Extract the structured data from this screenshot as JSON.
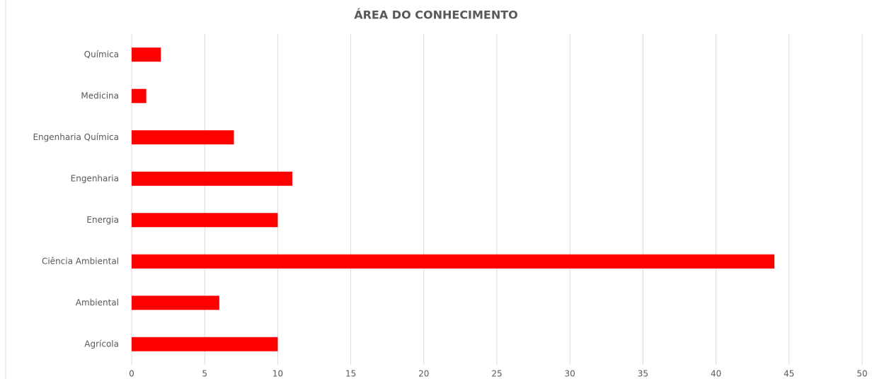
{
  "chart_data": {
    "type": "bar",
    "orientation": "horizontal",
    "title": "ÁREA DO CONHECIMENTO",
    "categories": [
      "Agrícola",
      "Ambiental",
      "Ciência Ambiental",
      "Energia",
      "Engenharia",
      "Engenharia Química",
      "Medicina",
      "Química"
    ],
    "values": [
      10,
      6,
      44,
      10,
      11,
      7,
      1,
      2
    ],
    "color": "#ff0000",
    "xlim": [
      0,
      50
    ],
    "xticks": [
      0,
      5,
      10,
      15,
      20,
      25,
      30,
      35,
      40,
      45,
      50
    ],
    "grid": true
  }
}
